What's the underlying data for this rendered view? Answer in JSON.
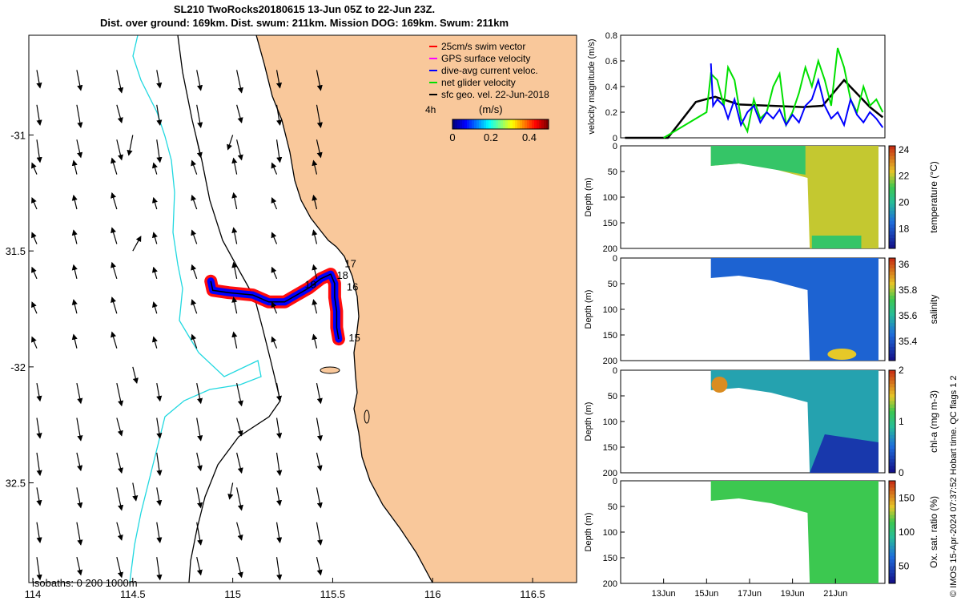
{
  "title_line1": "SL210 TwoRocks20180615 13-Jun 05Z to 22-Jun 23Z.",
  "title_line2": "Dist. over ground: 169km. Dist. swum: 211km. Mission DOG: 169km. Swum: 211km",
  "credit": "© IMOS 15-Apr-2024 07:37:52 Hobart time. QC flags 1  2",
  "colors": {
    "land": "#f9c89b",
    "isobath_shallow": "#000000",
    "isobath_200": "#000000",
    "isobath_1000": "#20d8e0",
    "swim": "#ff0000",
    "gps": "#ff00ff",
    "dive_avg": "#0000ff",
    "net_glider": "#00e000",
    "sfc_geo": "#000000"
  },
  "chart_data": [
    {
      "type": "scatter",
      "name": "map",
      "xlim": [
        113.98,
        116.72
      ],
      "ylim": [
        -32.93,
        -30.57
      ],
      "xticks": [
        114,
        114.5,
        115,
        115.5,
        116,
        116.5
      ],
      "xtick_labels": [
        "114",
        "114.5",
        "115",
        "115.5",
        "116",
        "116.5"
      ],
      "yticks": [
        -31,
        -31.5,
        -32,
        -32.5
      ],
      "ytick_labels": [
        "-31",
        "31.5",
        "-32",
        "32.5"
      ],
      "legend": [
        {
          "label": "25cm/s swim vector",
          "color": "#ff0000"
        },
        {
          "label": "GPS surface velocity",
          "color": "#ff00ff"
        },
        {
          "label": "dive-avg current veloc.",
          "color": "#0000ff"
        },
        {
          "label": "net glider velocity",
          "color": "#00e000"
        },
        {
          "label": "sfc geo. vel. 22-Jun-2018",
          "color": "#000000"
        }
      ],
      "legend_position": "top-right",
      "colorbar": {
        "label": "(m/s)",
        "left_label": "4h",
        "ticks": [
          "0",
          "0.2",
          "0.4"
        ],
        "range": [
          0,
          0.5
        ]
      },
      "isobaths_label": "isobaths: 0   200  1000m",
      "track_labels": [
        {
          "text": "17",
          "lon": 115.56,
          "lat": -31.57
        },
        {
          "text": "18",
          "lon": 115.52,
          "lat": -31.62
        },
        {
          "text": "16",
          "lon": 115.57,
          "lat": -31.67
        },
        {
          "text": "19",
          "lon": 115.36,
          "lat": -31.66
        },
        {
          "text": "15",
          "lon": 115.58,
          "lat": -31.89
        }
      ],
      "track": [
        [
          115.53,
          -31.88
        ],
        [
          115.52,
          -31.83
        ],
        [
          115.52,
          -31.76
        ],
        [
          115.51,
          -31.7
        ],
        [
          115.51,
          -31.64
        ],
        [
          115.49,
          -31.6
        ],
        [
          115.44,
          -31.62
        ],
        [
          115.38,
          -31.66
        ],
        [
          115.32,
          -31.69
        ],
        [
          115.26,
          -31.72
        ],
        [
          115.18,
          -31.72
        ],
        [
          115.1,
          -31.69
        ],
        [
          114.98,
          -31.68
        ],
        [
          114.9,
          -31.67
        ],
        [
          114.89,
          -31.63
        ]
      ],
      "flow_vectors": [
        {
          "lon": 114.5,
          "lat": -31.0,
          "u": -0.05,
          "v": -0.25
        },
        {
          "lon": 114.5,
          "lat": -31.5,
          "u": 0.1,
          "v": 0.18
        },
        {
          "lon": 114.5,
          "lat": -32.0,
          "u": 0.05,
          "v": -0.2
        },
        {
          "lon": 114.5,
          "lat": -32.5,
          "u": 0.04,
          "v": -0.22
        },
        {
          "lon": 115.0,
          "lat": -31.0,
          "u": -0.06,
          "v": -0.18
        },
        {
          "lon": 115.0,
          "lat": -32.5,
          "u": -0.04,
          "v": -0.2
        }
      ]
    },
    {
      "type": "line",
      "name": "velocity",
      "ylabel": "velocity magnitude (m/s)",
      "ylim": [
        0,
        0.8
      ],
      "yticks": [
        0,
        0.2,
        0.4,
        0.6,
        0.8
      ],
      "xlim": [
        11,
        23.3
      ],
      "xticks": [
        13,
        15,
        17,
        19,
        21
      ],
      "xtick_labels": [
        "13Jun",
        "15Jun",
        "17Jun",
        "19Jun",
        "21Jun"
      ],
      "series": [
        {
          "color": "#000000",
          "x": [
            11.2,
            12.0,
            13.2,
            14.5,
            15.4,
            16.5,
            18.0,
            19.5,
            20.4,
            21.4,
            22.6,
            23.2
          ],
          "y": [
            0.0,
            0.0,
            0.0,
            0.28,
            0.32,
            0.26,
            0.25,
            0.24,
            0.25,
            0.45,
            0.24,
            0.16
          ]
        },
        {
          "color": "#00e000",
          "x": [
            13.0,
            14.0,
            15.0,
            15.2,
            15.5,
            15.8,
            16.0,
            16.3,
            16.6,
            16.9,
            17.2,
            17.5,
            17.8,
            18.1,
            18.4,
            18.7,
            19.0,
            19.3,
            19.6,
            19.9,
            20.2,
            20.5,
            20.8,
            21.1,
            21.4,
            21.7,
            22.0,
            22.3,
            22.6,
            22.9,
            23.2
          ],
          "y": [
            0.0,
            0.1,
            0.2,
            0.5,
            0.45,
            0.25,
            0.55,
            0.45,
            0.15,
            0.05,
            0.3,
            0.15,
            0.2,
            0.4,
            0.5,
            0.1,
            0.2,
            0.35,
            0.55,
            0.4,
            0.6,
            0.45,
            0.25,
            0.7,
            0.55,
            0.3,
            0.2,
            0.4,
            0.25,
            0.3,
            0.2
          ]
        },
        {
          "color": "#0000ff",
          "x": [
            15.2,
            15.3,
            15.5,
            15.8,
            16.0,
            16.3,
            16.6,
            16.9,
            17.2,
            17.5,
            17.8,
            18.1,
            18.4,
            18.7,
            19.0,
            19.3,
            19.6,
            19.9,
            20.2,
            20.5,
            20.8,
            21.1,
            21.4,
            21.7,
            22.0,
            22.3,
            22.6,
            22.9,
            23.2
          ],
          "y": [
            0.58,
            0.25,
            0.3,
            0.25,
            0.15,
            0.3,
            0.1,
            0.2,
            0.25,
            0.12,
            0.2,
            0.15,
            0.22,
            0.1,
            0.18,
            0.12,
            0.25,
            0.3,
            0.45,
            0.25,
            0.15,
            0.2,
            0.1,
            0.3,
            0.18,
            0.12,
            0.2,
            0.15,
            0.08
          ]
        }
      ]
    },
    {
      "type": "heatmap",
      "name": "temperature",
      "ylabel": "Depth (m)",
      "clabel": "temperature (°C)",
      "ylim": [
        200,
        0
      ],
      "yticks": [
        0,
        50,
        100,
        150,
        200
      ],
      "crange": [
        16.5,
        24.3
      ],
      "cticks": [
        18,
        20,
        22,
        24
      ]
    },
    {
      "type": "heatmap",
      "name": "salinity",
      "ylabel": "Depth (m)",
      "clabel": "salinity",
      "ylim": [
        200,
        0
      ],
      "yticks": [
        0,
        50,
        100,
        150,
        200
      ],
      "crange": [
        35.25,
        36.05
      ],
      "cticks": [
        35.4,
        35.6,
        35.8,
        36
      ]
    },
    {
      "type": "heatmap",
      "name": "chla",
      "ylabel": "Depth (m)",
      "clabel": "chl-a (mg m-3)",
      "ylim": [
        200,
        0
      ],
      "yticks": [
        0,
        50,
        100,
        150,
        200
      ],
      "crange": [
        0,
        2
      ],
      "cticks": [
        0,
        1,
        2
      ]
    },
    {
      "type": "heatmap",
      "name": "oxygen",
      "ylabel": "Depth (m)",
      "clabel": "Ox. sat. ratio (%)",
      "ylim": [
        200,
        0
      ],
      "yticks": [
        0,
        50,
        100,
        150,
        200
      ],
      "crange": [
        25,
        175
      ],
      "cticks": [
        50,
        100,
        150
      ]
    }
  ]
}
